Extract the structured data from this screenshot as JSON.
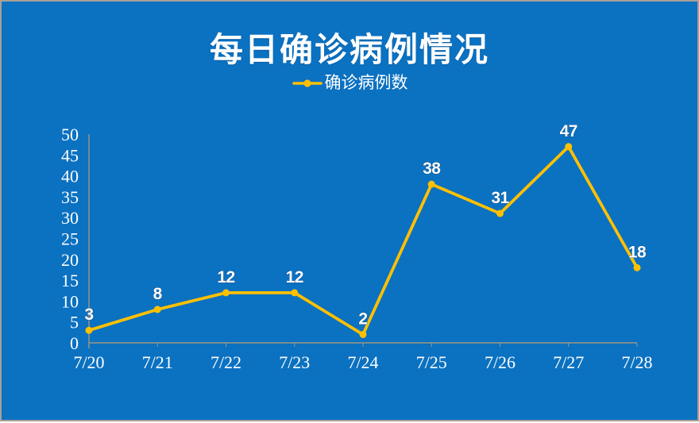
{
  "chart_data": {
    "type": "line",
    "title": "每日确诊病例情况",
    "categories": [
      "7/20",
      "7/21",
      "7/22",
      "7/23",
      "7/24",
      "7/25",
      "7/26",
      "7/27",
      "7/28"
    ],
    "series": [
      {
        "name": "确诊病例数",
        "values": [
          3,
          8,
          12,
          12,
          2,
          38,
          31,
          47,
          18
        ]
      }
    ],
    "xlabel": "",
    "ylabel": "",
    "ylim": [
      0,
      50
    ],
    "ytick_step": 5,
    "yticks": [
      0,
      5,
      10,
      15,
      20,
      25,
      30,
      35,
      40,
      45,
      50
    ],
    "grid": false,
    "data_labels": true,
    "legend_position": "top-center",
    "colors": {
      "background": "#0b71c1",
      "series": "#ffc000",
      "axis": "#a09582",
      "text": "#ffffff",
      "frame_border": "#a8a096"
    }
  }
}
